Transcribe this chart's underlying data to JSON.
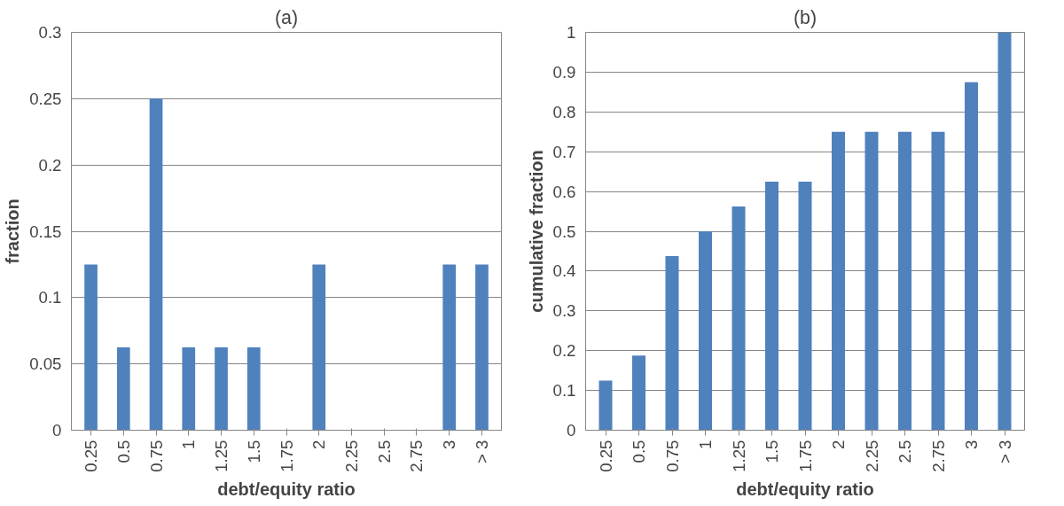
{
  "chart_data": [
    {
      "type": "bar",
      "title": "(a)",
      "xlabel": "debt/equity ratio",
      "ylabel": "fraction",
      "categories": [
        "0.25",
        "0.5",
        "0.75",
        "1",
        "1.25",
        "1.5",
        "1.75",
        "2",
        "2.25",
        "2.5",
        "2.75",
        "3",
        "> 3"
      ],
      "values": [
        0.125,
        0.0625,
        0.25,
        0.0625,
        0.0625,
        0.0625,
        0,
        0.125,
        0,
        0,
        0,
        0.125,
        0.125
      ],
      "color": "#4f81bd",
      "ylim": [
        0,
        0.3
      ],
      "yticks": [
        0,
        0.05,
        0.1,
        0.15,
        0.2,
        0.25,
        0.3
      ],
      "grid": "y"
    },
    {
      "type": "bar",
      "title": "(b)",
      "xlabel": "debt/equity ratio",
      "ylabel": "cumulative fraction",
      "categories": [
        "0.25",
        "0.5",
        "0.75",
        "1",
        "1.25",
        "1.5",
        "1.75",
        "2",
        "2.25",
        "2.5",
        "2.75",
        "3",
        "> 3"
      ],
      "values": [
        0.125,
        0.1875,
        0.4375,
        0.5,
        0.5625,
        0.625,
        0.625,
        0.75,
        0.75,
        0.75,
        0.75,
        0.875,
        1.0
      ],
      "color": "#4f81bd",
      "ylim": [
        0,
        1
      ],
      "yticks": [
        0,
        0.1,
        0.2,
        0.3,
        0.4,
        0.5,
        0.6,
        0.7,
        0.8,
        0.9,
        1
      ],
      "grid": "y"
    }
  ]
}
